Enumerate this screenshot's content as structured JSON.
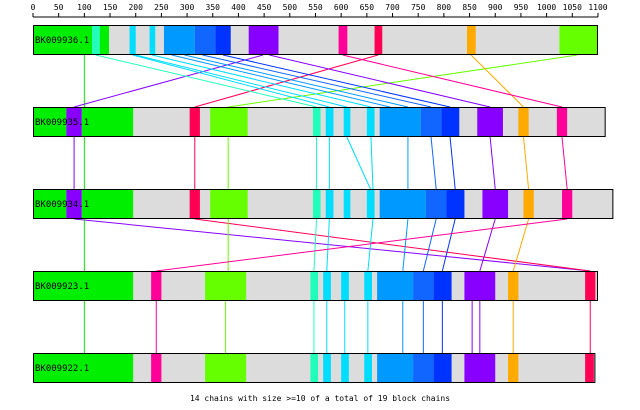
{
  "scale": {
    "ticks": [
      "0",
      "50",
      "100",
      "150",
      "200",
      "250",
      "300",
      "350",
      "400",
      "450",
      "500",
      "550",
      "600",
      "650",
      "700",
      "750",
      "800",
      "850",
      "900",
      "950",
      "1000",
      "1050",
      "1100"
    ],
    "min": 0,
    "max": 1100
  },
  "colors": {
    "track": "#dcdcdc",
    "green": "#00ee00",
    "lime": "#66ff00",
    "mint": "#22ffbb",
    "cyan": "#00ddff",
    "sky": "#0099ff",
    "blue": "#1166ff",
    "royal": "#0033ff",
    "navy": "#0000ee",
    "violet": "#8800ff",
    "magenta": "#ff0099",
    "red": "#ff0055",
    "orange": "#ffaa00"
  },
  "genomes": [
    {
      "label": "BK009936.1",
      "length": 1100,
      "blocks": [
        {
          "start": 0,
          "end": 115,
          "color": "green"
        },
        {
          "start": 115,
          "end": 130,
          "color": "mint"
        },
        {
          "start": 130,
          "end": 148,
          "color": "green"
        },
        {
          "start": 188,
          "end": 200,
          "color": "cyan"
        },
        {
          "start": 227,
          "end": 238,
          "color": "cyan"
        },
        {
          "start": 255,
          "end": 315,
          "color": "sky"
        },
        {
          "start": 315,
          "end": 355,
          "color": "blue"
        },
        {
          "start": 355,
          "end": 385,
          "color": "royal"
        },
        {
          "start": 420,
          "end": 478,
          "color": "violet"
        },
        {
          "start": 595,
          "end": 612,
          "color": "magenta"
        },
        {
          "start": 665,
          "end": 680,
          "color": "red"
        },
        {
          "start": 845,
          "end": 862,
          "color": "orange"
        },
        {
          "start": 1025,
          "end": 1100,
          "color": "lime"
        }
      ]
    },
    {
      "label": "BK009935.1",
      "length": 1115,
      "blocks": [
        {
          "start": 0,
          "end": 65,
          "color": "green"
        },
        {
          "start": 65,
          "end": 95,
          "color": "violet"
        },
        {
          "start": 95,
          "end": 195,
          "color": "green"
        },
        {
          "start": 305,
          "end": 325,
          "color": "red"
        },
        {
          "start": 345,
          "end": 418,
          "color": "lime"
        },
        {
          "start": 545,
          "end": 560,
          "color": "mint"
        },
        {
          "start": 570,
          "end": 585,
          "color": "cyan"
        },
        {
          "start": 605,
          "end": 618,
          "color": "cyan"
        },
        {
          "start": 650,
          "end": 665,
          "color": "cyan"
        },
        {
          "start": 675,
          "end": 755,
          "color": "sky"
        },
        {
          "start": 755,
          "end": 795,
          "color": "blue"
        },
        {
          "start": 795,
          "end": 830,
          "color": "royal"
        },
        {
          "start": 865,
          "end": 915,
          "color": "violet"
        },
        {
          "start": 945,
          "end": 965,
          "color": "orange"
        },
        {
          "start": 1020,
          "end": 1040,
          "color": "magenta"
        }
      ]
    },
    {
      "label": "BK009934.1",
      "length": 1130,
      "blocks": [
        {
          "start": 0,
          "end": 65,
          "color": "green"
        },
        {
          "start": 65,
          "end": 95,
          "color": "violet"
        },
        {
          "start": 95,
          "end": 195,
          "color": "green"
        },
        {
          "start": 305,
          "end": 325,
          "color": "red"
        },
        {
          "start": 345,
          "end": 418,
          "color": "lime"
        },
        {
          "start": 545,
          "end": 560,
          "color": "mint"
        },
        {
          "start": 570,
          "end": 585,
          "color": "cyan"
        },
        {
          "start": 605,
          "end": 618,
          "color": "cyan"
        },
        {
          "start": 650,
          "end": 665,
          "color": "cyan"
        },
        {
          "start": 675,
          "end": 765,
          "color": "sky"
        },
        {
          "start": 765,
          "end": 805,
          "color": "blue"
        },
        {
          "start": 805,
          "end": 840,
          "color": "royal"
        },
        {
          "start": 875,
          "end": 925,
          "color": "violet"
        },
        {
          "start": 955,
          "end": 975,
          "color": "orange"
        },
        {
          "start": 1030,
          "end": 1050,
          "color": "magenta"
        }
      ]
    },
    {
      "label": "BK009923.1",
      "length": 1100,
      "blocks": [
        {
          "start": 0,
          "end": 195,
          "color": "green"
        },
        {
          "start": 230,
          "end": 250,
          "color": "magenta"
        },
        {
          "start": 335,
          "end": 415,
          "color": "lime"
        },
        {
          "start": 540,
          "end": 555,
          "color": "mint"
        },
        {
          "start": 565,
          "end": 580,
          "color": "cyan"
        },
        {
          "start": 600,
          "end": 615,
          "color": "cyan"
        },
        {
          "start": 645,
          "end": 660,
          "color": "cyan"
        },
        {
          "start": 670,
          "end": 740,
          "color": "sky"
        },
        {
          "start": 740,
          "end": 780,
          "color": "blue"
        },
        {
          "start": 780,
          "end": 815,
          "color": "royal"
        },
        {
          "start": 840,
          "end": 900,
          "color": "violet"
        },
        {
          "start": 925,
          "end": 945,
          "color": "orange"
        },
        {
          "start": 1075,
          "end": 1095,
          "color": "red"
        }
      ]
    },
    {
      "label": "BK009922.1",
      "length": 1095,
      "blocks": [
        {
          "start": 0,
          "end": 195,
          "color": "green"
        },
        {
          "start": 230,
          "end": 250,
          "color": "magenta"
        },
        {
          "start": 335,
          "end": 415,
          "color": "lime"
        },
        {
          "start": 540,
          "end": 555,
          "color": "mint"
        },
        {
          "start": 565,
          "end": 580,
          "color": "cyan"
        },
        {
          "start": 600,
          "end": 615,
          "color": "cyan"
        },
        {
          "start": 645,
          "end": 660,
          "color": "cyan"
        },
        {
          "start": 670,
          "end": 740,
          "color": "sky"
        },
        {
          "start": 740,
          "end": 780,
          "color": "blue"
        },
        {
          "start": 780,
          "end": 815,
          "color": "royal"
        },
        {
          "start": 840,
          "end": 900,
          "color": "violet"
        },
        {
          "start": 925,
          "end": 945,
          "color": "orange"
        },
        {
          "start": 1075,
          "end": 1092,
          "color": "red"
        }
      ]
    }
  ],
  "links": [
    {
      "from": 0,
      "a": 100,
      "b": 100,
      "color": "green"
    },
    {
      "from": 0,
      "a": 448,
      "b": 80,
      "color": "violet"
    },
    {
      "from": 0,
      "a": 672,
      "b": 315,
      "color": "red"
    },
    {
      "from": 0,
      "a": 1060,
      "b": 380,
      "color": "lime"
    },
    {
      "from": 0,
      "a": 122,
      "b": 552,
      "color": "mint"
    },
    {
      "from": 0,
      "a": 194,
      "b": 577,
      "color": "cyan"
    },
    {
      "from": 0,
      "a": 200,
      "b": 611,
      "color": "cyan"
    },
    {
      "from": 0,
      "a": 232,
      "b": 658,
      "color": "cyan"
    },
    {
      "from": 0,
      "a": 270,
      "b": 695,
      "color": "sky"
    },
    {
      "from": 0,
      "a": 295,
      "b": 730,
      "color": "sky"
    },
    {
      "from": 0,
      "a": 330,
      "b": 775,
      "color": "blue"
    },
    {
      "from": 0,
      "a": 370,
      "b": 812,
      "color": "royal"
    },
    {
      "from": 0,
      "a": 460,
      "b": 890,
      "color": "violet"
    },
    {
      "from": 0,
      "a": 853,
      "b": 955,
      "color": "orange"
    },
    {
      "from": 0,
      "a": 603,
      "b": 1030,
      "color": "magenta"
    },
    {
      "from": 1,
      "a": 80,
      "b": 80,
      "color": "violet"
    },
    {
      "from": 1,
      "a": 100,
      "b": 100,
      "color": "green"
    },
    {
      "from": 1,
      "a": 315,
      "b": 315,
      "color": "red"
    },
    {
      "from": 1,
      "a": 380,
      "b": 380,
      "color": "lime"
    },
    {
      "from": 1,
      "a": 552,
      "b": 552,
      "color": "mint"
    },
    {
      "from": 1,
      "a": 577,
      "b": 577,
      "color": "cyan"
    },
    {
      "from": 1,
      "a": 611,
      "b": 657,
      "color": "cyan"
    },
    {
      "from": 1,
      "a": 658,
      "b": 662,
      "color": "cyan"
    },
    {
      "from": 1,
      "a": 730,
      "b": 730,
      "color": "sky"
    },
    {
      "from": 1,
      "a": 775,
      "b": 785,
      "color": "blue"
    },
    {
      "from": 1,
      "a": 812,
      "b": 822,
      "color": "royal"
    },
    {
      "from": 1,
      "a": 890,
      "b": 900,
      "color": "violet"
    },
    {
      "from": 1,
      "a": 955,
      "b": 965,
      "color": "orange"
    },
    {
      "from": 1,
      "a": 1030,
      "b": 1040,
      "color": "magenta"
    },
    {
      "from": 2,
      "a": 80,
      "b": 1085,
      "color": "violet"
    },
    {
      "from": 2,
      "a": 100,
      "b": 100,
      "color": "green"
    },
    {
      "from": 2,
      "a": 315,
      "b": 1085,
      "color": "red"
    },
    {
      "from": 2,
      "a": 380,
      "b": 380,
      "color": "lime"
    },
    {
      "from": 2,
      "a": 552,
      "b": 547,
      "color": "mint"
    },
    {
      "from": 2,
      "a": 577,
      "b": 572,
      "color": "cyan"
    },
    {
      "from": 2,
      "a": 662,
      "b": 652,
      "color": "cyan"
    },
    {
      "from": 2,
      "a": 730,
      "b": 720,
      "color": "sky"
    },
    {
      "from": 2,
      "a": 785,
      "b": 760,
      "color": "blue"
    },
    {
      "from": 2,
      "a": 822,
      "b": 797,
      "color": "royal"
    },
    {
      "from": 2,
      "a": 900,
      "b": 870,
      "color": "violet"
    },
    {
      "from": 2,
      "a": 965,
      "b": 935,
      "color": "orange"
    },
    {
      "from": 2,
      "a": 1040,
      "b": 240,
      "color": "magenta"
    },
    {
      "from": 3,
      "a": 100,
      "b": 100,
      "color": "green"
    },
    {
      "from": 3,
      "a": 240,
      "b": 240,
      "color": "magenta"
    },
    {
      "from": 3,
      "a": 375,
      "b": 375,
      "color": "lime"
    },
    {
      "from": 3,
      "a": 547,
      "b": 547,
      "color": "mint"
    },
    {
      "from": 3,
      "a": 572,
      "b": 572,
      "color": "cyan"
    },
    {
      "from": 3,
      "a": 607,
      "b": 607,
      "color": "cyan"
    },
    {
      "from": 3,
      "a": 652,
      "b": 652,
      "color": "cyan"
    },
    {
      "from": 3,
      "a": 720,
      "b": 720,
      "color": "sky"
    },
    {
      "from": 3,
      "a": 760,
      "b": 760,
      "color": "blue"
    },
    {
      "from": 3,
      "a": 797,
      "b": 797,
      "color": "royal"
    },
    {
      "from": 3,
      "a": 855,
      "b": 855,
      "color": "violet"
    },
    {
      "from": 3,
      "a": 870,
      "b": 870,
      "color": "violet"
    },
    {
      "from": 3,
      "a": 935,
      "b": 935,
      "color": "orange"
    },
    {
      "from": 3,
      "a": 1085,
      "b": 1085,
      "color": "red"
    }
  ],
  "footer": "14 chains with size >=10 of a total of 19 block chains"
}
